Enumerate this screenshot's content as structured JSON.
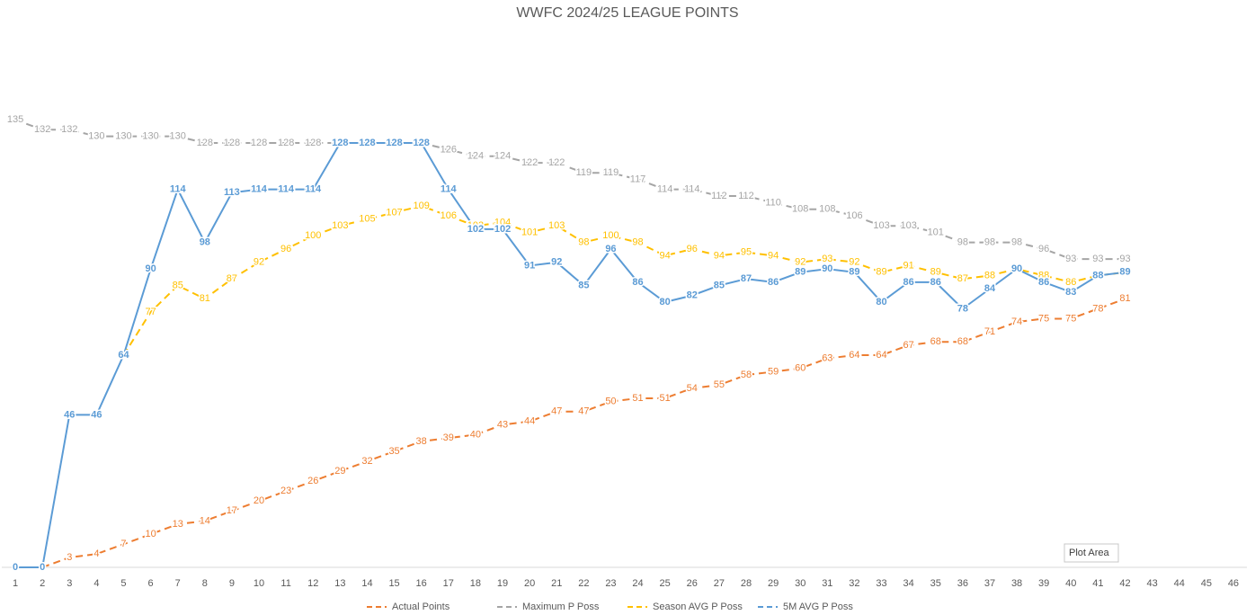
{
  "chart_data": {
    "type": "line",
    "title": "WWFC 2024/25 LEAGUE POINTS",
    "categories": [
      1,
      2,
      3,
      4,
      5,
      6,
      7,
      8,
      9,
      10,
      11,
      12,
      13,
      14,
      15,
      16,
      17,
      18,
      19,
      20,
      21,
      22,
      23,
      24,
      25,
      26,
      27,
      28,
      29,
      30,
      31,
      32,
      33,
      34,
      35,
      36,
      37,
      38,
      39,
      40,
      41,
      42,
      43,
      44,
      45,
      46
    ],
    "ylim": [
      0,
      160
    ],
    "legend": "bottom",
    "tooltip": "Plot Area",
    "series": [
      {
        "name": "Actual Points",
        "color": "#ed7d31",
        "dashed": true,
        "values": [
          null,
          0,
          3,
          4,
          7,
          10,
          13,
          14,
          17,
          20,
          23,
          26,
          29,
          32,
          35,
          38,
          39,
          40,
          43,
          44,
          47,
          47,
          50,
          51,
          51,
          54,
          55,
          58,
          59,
          60,
          63,
          64,
          64,
          67,
          68,
          68,
          71,
          74,
          75,
          75,
          78,
          81,
          null,
          null,
          null,
          null
        ]
      },
      {
        "name": "Maximum P Poss",
        "color": "#a5a5a5",
        "dashed": true,
        "values": [
          135,
          132,
          132,
          130,
          130,
          130,
          130,
          128,
          128,
          128,
          128,
          128,
          128,
          128,
          128,
          128,
          126,
          124,
          124,
          122,
          122,
          119,
          119,
          117,
          114,
          114,
          112,
          112,
          110,
          108,
          108,
          106,
          103,
          103,
          101,
          98,
          98,
          98,
          96,
          93,
          93,
          93,
          null,
          null,
          null,
          null
        ]
      },
      {
        "name": "Season AVG P Poss",
        "color": "#ffc000",
        "dashed": true,
        "values": [
          null,
          null,
          null,
          null,
          64,
          77,
          85,
          81,
          87,
          92,
          96,
          100,
          103,
          105,
          107,
          109,
          106,
          103,
          104,
          101,
          103,
          98,
          100,
          98,
          94,
          96,
          94,
          95,
          94,
          92,
          93,
          92,
          89,
          91,
          89,
          87,
          88,
          90,
          88,
          86,
          88,
          89,
          null,
          null,
          null,
          null
        ]
      },
      {
        "name": "5M AVG P Poss",
        "color": "#5b9bd5",
        "dashed": false,
        "values": [
          0,
          0,
          46,
          46,
          64,
          90,
          114,
          98,
          113,
          114,
          114,
          114,
          128,
          128,
          128,
          128,
          114,
          102,
          102,
          91,
          92,
          85,
          96,
          86,
          80,
          82,
          85,
          87,
          86,
          89,
          90,
          89,
          80,
          86,
          86,
          78,
          84,
          90,
          86,
          83,
          88,
          89,
          null,
          null,
          null,
          null
        ]
      }
    ]
  }
}
